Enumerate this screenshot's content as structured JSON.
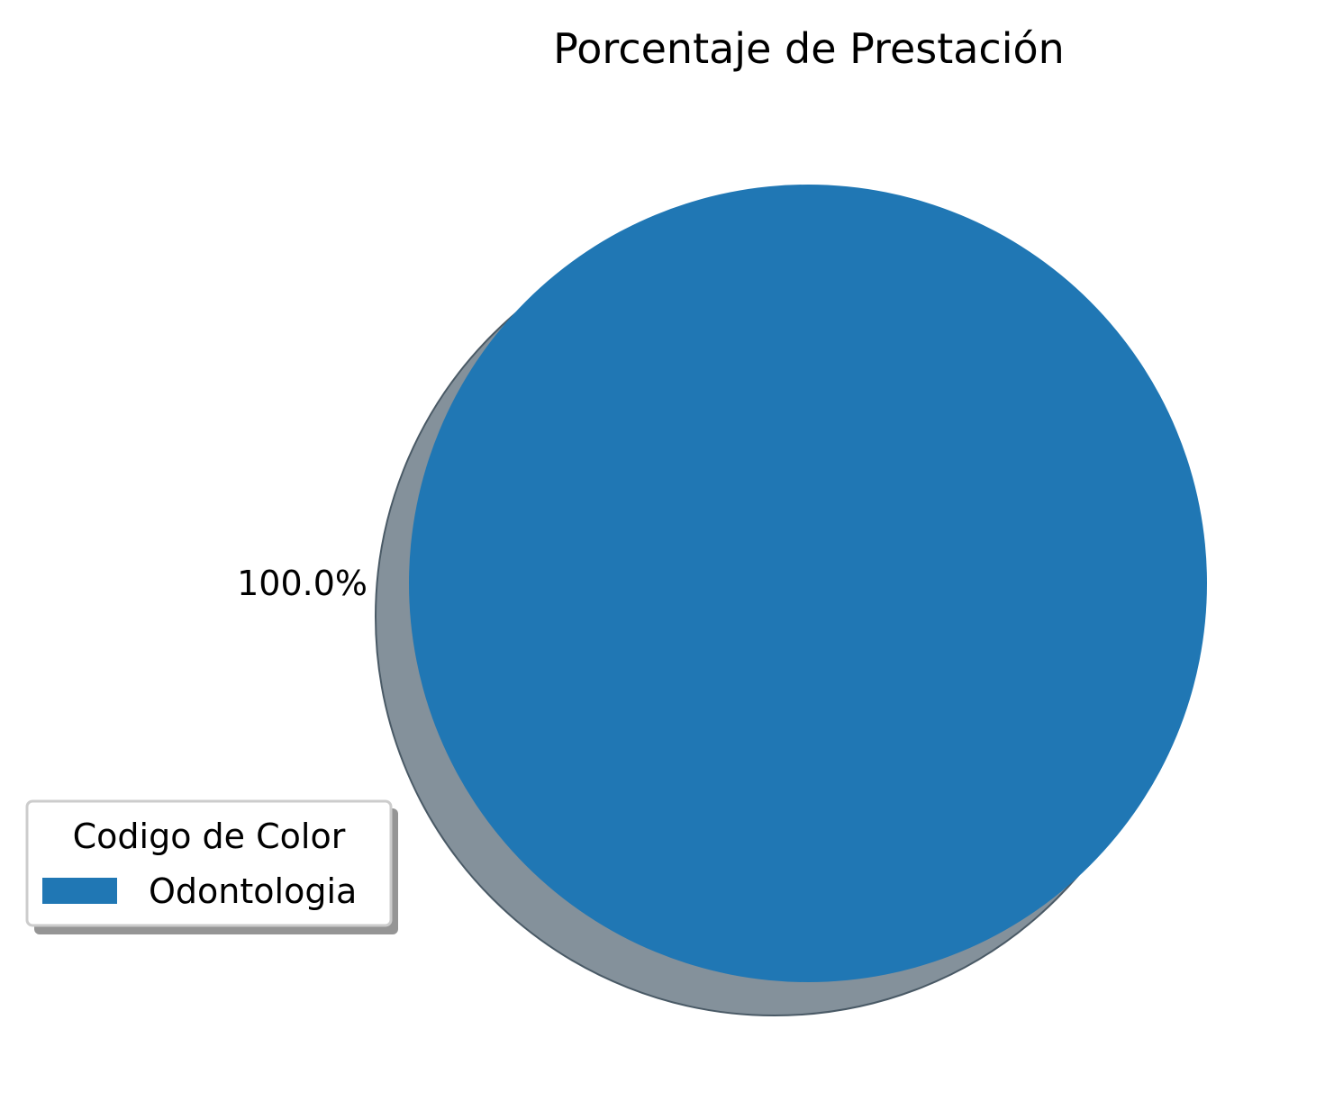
{
  "chart_data": {
    "type": "pie",
    "title": "Porcentaje de Prestación",
    "slices": [
      {
        "label": "Odontologia",
        "value": 100.0,
        "pct_label": "100.0%",
        "color": "#2077b4"
      }
    ],
    "shadow": true,
    "shadow_color": "#84919b",
    "legend": {
      "title": "Codigo de Color",
      "placement": "lower-left",
      "entries": [
        "Odontologia"
      ]
    }
  }
}
